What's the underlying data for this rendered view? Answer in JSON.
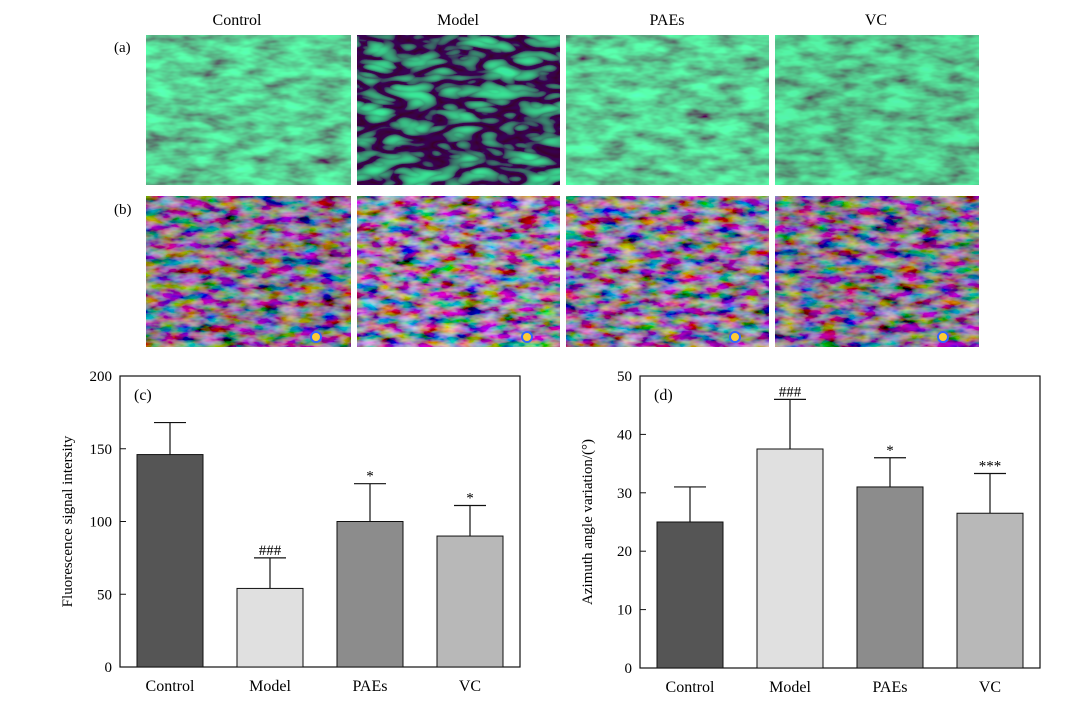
{
  "figure": {
    "column_titles": [
      "Control",
      "Model",
      "PAEs",
      "VC"
    ],
    "row_labels": [
      "(a)",
      "(b)"
    ],
    "row_a_description_colors": {
      "fiber": "#1fbf55",
      "background": "#0a2a12"
    },
    "row_b_colors": {
      "red": "#d8203a",
      "blue": "#3848d8",
      "cyan": "#28c8d8",
      "green": "#30c850",
      "background": "#05060a"
    }
  },
  "chart_data": [
    {
      "panel": "(c)",
      "type": "bar",
      "categories": [
        "Control",
        "Model",
        "PAEs",
        "VC"
      ],
      "values": [
        146,
        54,
        100,
        90
      ],
      "errors": [
        22,
        21,
        26,
        21
      ],
      "annotations": [
        "",
        "###",
        "*",
        "*"
      ],
      "colors": [
        "#555555",
        "#e0e0e0",
        "#8c8c8c",
        "#b8b8b8"
      ],
      "ylabel": "Fluorescence signal intersity",
      "xlabel": "",
      "ylim": [
        0,
        200
      ],
      "yticks": [
        0,
        50,
        100,
        150,
        200
      ]
    },
    {
      "panel": "(d)",
      "type": "bar",
      "categories": [
        "Control",
        "Model",
        "PAEs",
        "VC"
      ],
      "values": [
        25,
        37.5,
        31,
        26.5
      ],
      "errors": [
        6,
        8.5,
        5,
        6.8
      ],
      "annotations": [
        "",
        "###",
        "*",
        "***"
      ],
      "colors": [
        "#555555",
        "#e0e0e0",
        "#8c8c8c",
        "#b8b8b8"
      ],
      "ylabel": "Azimuth angle variation/(°)",
      "xlabel": "",
      "ylim": [
        0,
        50
      ],
      "yticks": [
        0,
        10,
        20,
        30,
        40,
        50
      ]
    }
  ]
}
